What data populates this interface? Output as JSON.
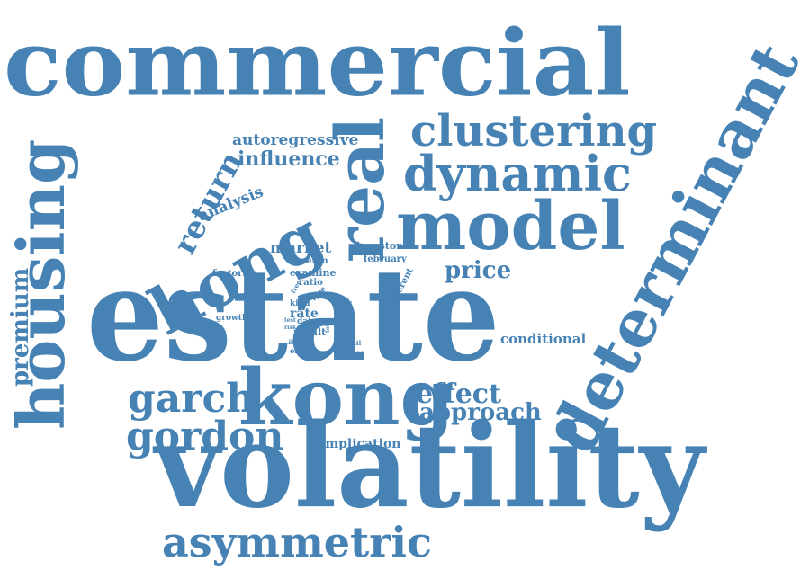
{
  "color": "#4682B4",
  "words": [
    "commercial",
    "estate",
    "volatility",
    "determinant",
    "housing",
    "real",
    "model",
    "kong",
    "hong",
    "dynamic",
    "clustering",
    "asymmetric",
    "gordon",
    "garch",
    "return",
    "premium",
    "effect",
    "approach",
    "price",
    "autoregressive",
    "influence",
    "analysis",
    "conditional",
    "implication",
    "market",
    "investor",
    "foreign",
    "examine",
    "february",
    "factories",
    "different",
    "ratio",
    "type",
    "free",
    "kind",
    "rate",
    "paper",
    "data",
    "growth",
    "value",
    "test",
    "risk",
    "result",
    "total",
    "arma",
    "retail",
    "ofreal",
    "office"
  ]
}
